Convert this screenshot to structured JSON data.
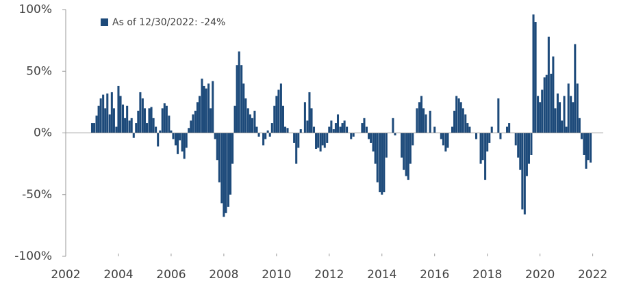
{
  "chart_data": {
    "type": "bar",
    "series": [
      {
        "name": "As of 12/30/2022: -24%",
        "color": "#1d4a7a",
        "x": [
          2003.0,
          2003.08,
          2003.17,
          2003.25,
          2003.33,
          2003.42,
          2003.5,
          2003.58,
          2003.67,
          2003.75,
          2003.83,
          2003.92,
          2004.0,
          2004.08,
          2004.17,
          2004.25,
          2004.33,
          2004.42,
          2004.5,
          2004.58,
          2004.67,
          2004.75,
          2004.83,
          2004.92,
          2005.0,
          2005.08,
          2005.17,
          2005.25,
          2005.33,
          2005.42,
          2005.5,
          2005.58,
          2005.67,
          2005.75,
          2005.83,
          2005.92,
          2006.0,
          2006.08,
          2006.17,
          2006.25,
          2006.33,
          2006.42,
          2006.5,
          2006.58,
          2006.67,
          2006.75,
          2006.83,
          2006.92,
          2007.0,
          2007.08,
          2007.17,
          2007.25,
          2007.33,
          2007.42,
          2007.5,
          2007.58,
          2007.67,
          2007.75,
          2007.83,
          2007.92,
          2008.0,
          2008.08,
          2008.17,
          2008.25,
          2008.33,
          2008.42,
          2008.5,
          2008.58,
          2008.67,
          2008.75,
          2008.83,
          2008.92,
          2009.0,
          2009.08,
          2009.17,
          2009.25,
          2009.33,
          2009.42,
          2009.5,
          2009.58,
          2009.67,
          2009.75,
          2009.83,
          2009.92,
          2010.0,
          2010.08,
          2010.17,
          2010.25,
          2010.33,
          2010.42,
          2010.5,
          2010.58,
          2010.67,
          2010.75,
          2010.83,
          2010.92,
          2011.0,
          2011.08,
          2011.17,
          2011.25,
          2011.33,
          2011.42,
          2011.5,
          2011.58,
          2011.67,
          2011.75,
          2011.83,
          2011.92,
          2012.0,
          2012.08,
          2012.17,
          2012.25,
          2012.33,
          2012.42,
          2012.5,
          2012.58,
          2012.67,
          2012.75,
          2012.83,
          2012.92,
          2013.0,
          2013.08,
          2013.17,
          2013.25,
          2013.33,
          2013.42,
          2013.5,
          2013.58,
          2013.67,
          2013.75,
          2013.83,
          2013.92,
          2014.0,
          2014.08,
          2014.17,
          2014.25,
          2014.33,
          2014.42,
          2014.5,
          2014.58,
          2014.67,
          2014.75,
          2014.83,
          2014.92,
          2015.0,
          2015.08,
          2015.17,
          2015.25,
          2015.33,
          2015.42,
          2015.5,
          2015.58,
          2015.67,
          2015.75,
          2015.83,
          2015.92,
          2016.0,
          2016.08,
          2016.17,
          2016.25,
          2016.33,
          2016.42,
          2016.5,
          2016.58,
          2016.67,
          2016.75,
          2016.83,
          2016.92,
          2017.0,
          2017.08,
          2017.17,
          2017.25,
          2017.33,
          2017.42,
          2017.5,
          2017.58,
          2017.67,
          2017.75,
          2017.83,
          2017.92,
          2018.0,
          2018.08,
          2018.17,
          2018.25,
          2018.33,
          2018.42,
          2018.5,
          2018.58,
          2018.67,
          2018.75,
          2018.83,
          2018.92,
          2019.0,
          2019.08,
          2019.17,
          2019.25,
          2019.33,
          2019.42,
          2019.5,
          2019.58,
          2019.67,
          2019.75,
          2019.83,
          2019.92,
          2020.0,
          2020.08,
          2020.17,
          2020.25,
          2020.33,
          2020.42,
          2020.5,
          2020.58,
          2020.67,
          2020.75,
          2020.83,
          2020.92,
          2021.0,
          2021.08,
          2021.17,
          2021.25,
          2021.33,
          2021.42,
          2021.5,
          2021.58,
          2021.67,
          2021.75,
          2021.83,
          2021.92
        ],
        "values": [
          8,
          8,
          14,
          22,
          28,
          31,
          20,
          32,
          15,
          33,
          20,
          5,
          38,
          30,
          23,
          12,
          22,
          10,
          12,
          -4,
          8,
          18,
          33,
          28,
          20,
          8,
          20,
          21,
          12,
          5,
          -11,
          2,
          20,
          24,
          22,
          14,
          2,
          -5,
          -10,
          -17,
          -6,
          -15,
          -21,
          -12,
          4,
          10,
          15,
          18,
          25,
          30,
          44,
          38,
          36,
          40,
          20,
          42,
          -5,
          -22,
          -40,
          -57,
          -68,
          -65,
          -60,
          -50,
          -25,
          22,
          55,
          66,
          55,
          40,
          28,
          20,
          15,
          12,
          18,
          5,
          -3,
          0,
          -10,
          -5,
          2,
          -3,
          8,
          22,
          30,
          35,
          40,
          22,
          5,
          4,
          0,
          0,
          -8,
          -25,
          -12,
          3,
          0,
          25,
          10,
          33,
          20,
          5,
          -13,
          -12,
          -15,
          -10,
          -12,
          -8,
          5,
          10,
          3,
          8,
          15,
          5,
          8,
          10,
          5,
          0,
          -5,
          -3,
          0,
          0,
          0,
          8,
          12,
          5,
          -5,
          -8,
          -15,
          -25,
          -40,
          -48,
          -50,
          -48,
          -20,
          0,
          0,
          12,
          -2,
          0,
          0,
          -20,
          -30,
          -35,
          -38,
          -25,
          -10,
          0,
          20,
          25,
          30,
          20,
          15,
          0,
          18,
          0,
          5,
          0,
          0,
          -5,
          -10,
          -15,
          -12,
          0,
          5,
          18,
          30,
          28,
          25,
          20,
          15,
          8,
          5,
          0,
          0,
          -5,
          0,
          -25,
          -22,
          -38,
          -15,
          -8,
          5,
          0,
          0,
          28,
          -5,
          0,
          0,
          5,
          8,
          0,
          0,
          -10,
          -20,
          -30,
          -62,
          -66,
          -35,
          -25,
          -18,
          96,
          90,
          30,
          25,
          35,
          45,
          47,
          78,
          48,
          62,
          20,
          32,
          25,
          10,
          30,
          5,
          40,
          30,
          25,
          72,
          40,
          12,
          -5,
          -18,
          -29,
          -22,
          -24
        ]
      }
    ],
    "xlim": [
      2002,
      2022.4
    ],
    "xticks": [
      2002,
      2004,
      2006,
      2008,
      2010,
      2012,
      2014,
      2016,
      2018,
      2020,
      2022
    ],
    "ylim": [
      -100,
      100
    ],
    "yticks": [
      {
        "value": -100,
        "label": "-100%"
      },
      {
        "value": -50,
        "label": "-50%"
      },
      {
        "value": 0,
        "label": "0%"
      },
      {
        "value": 50,
        "label": "50%"
      },
      {
        "value": 100,
        "label": "100%"
      }
    ],
    "legend": "upper left"
  }
}
